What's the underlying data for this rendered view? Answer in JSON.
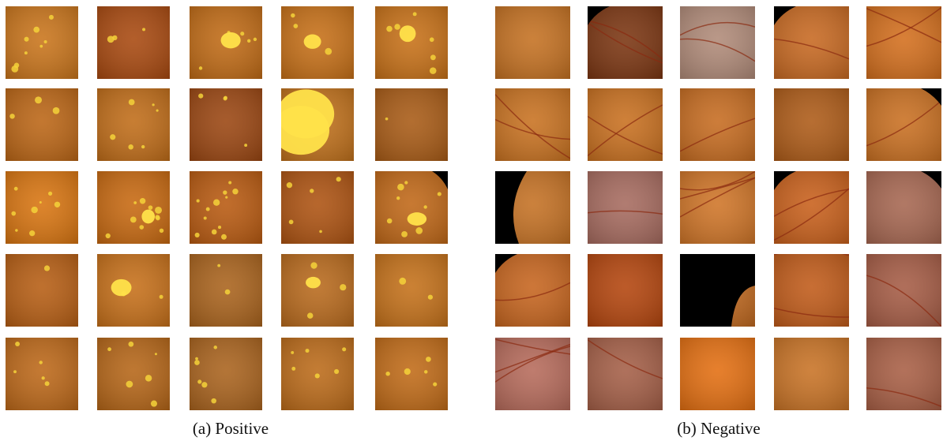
{
  "panels": [
    {
      "caption": "(a) Positive"
    },
    {
      "caption": "(b) Negative"
    }
  ]
}
